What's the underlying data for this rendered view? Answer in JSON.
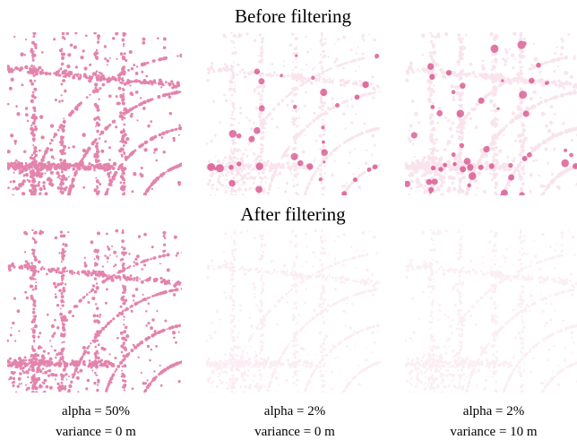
{
  "sections": [
    {
      "title": "Before filtering"
    },
    {
      "title": "After filtering"
    }
  ],
  "captions": [
    {
      "alpha": "alpha = 50%",
      "variance": "variance = 0 m"
    },
    {
      "alpha": "alpha = 2%",
      "variance": "variance = 0 m"
    },
    {
      "alpha": "alpha = 2%",
      "variance": "variance = 10 m"
    }
  ]
}
